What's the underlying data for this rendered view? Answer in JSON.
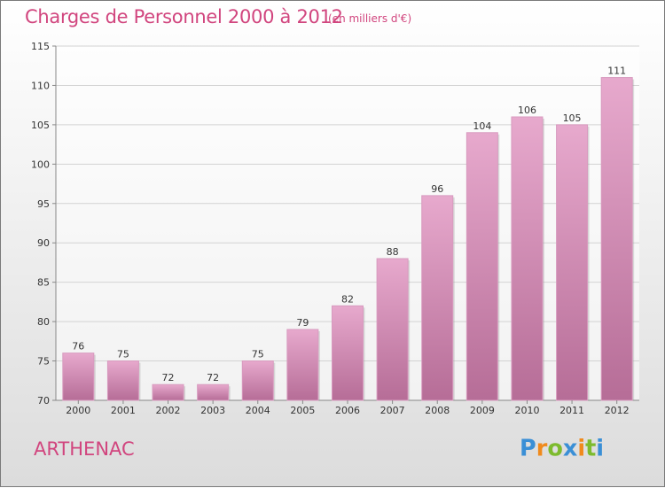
{
  "chart_data": {
    "type": "bar",
    "title": "Charges de Personnel 2000 à 2012",
    "subtitle": "(en milliers d'€)",
    "categories": [
      "2000",
      "2001",
      "2002",
      "2003",
      "2004",
      "2005",
      "2006",
      "2007",
      "2008",
      "2009",
      "2010",
      "2011",
      "2012"
    ],
    "values": [
      76,
      75,
      72,
      72,
      75,
      79,
      82,
      88,
      96,
      104,
      106,
      105,
      111
    ],
    "ylim": [
      70,
      115
    ],
    "yticks": [
      70,
      75,
      80,
      85,
      90,
      95,
      100,
      105,
      110,
      115
    ],
    "grid": "horizontal",
    "bar_color": "#c0679b"
  },
  "footer": {
    "place": "ARTHENAC",
    "logo": "Proxiti"
  }
}
